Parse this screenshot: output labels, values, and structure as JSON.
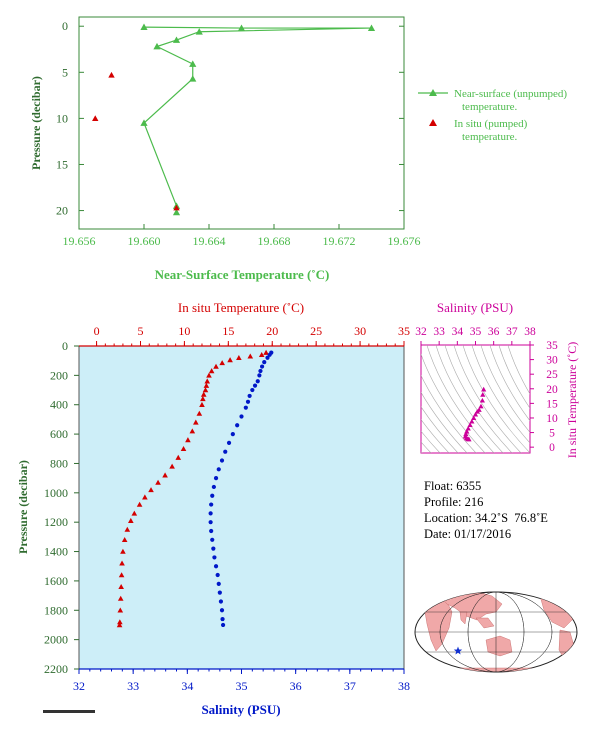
{
  "colors": {
    "near_surface": "#4cbb4c",
    "in_situ": "#d40000",
    "salinity": "#0018c8",
    "tick_label_green": "#2f6b2f",
    "ts_plot": "#cc0099",
    "panel_bg": "#cdeef8",
    "map_land": "#f0a8a8"
  },
  "chart_data": [
    {
      "type": "line",
      "xlabel": "Near-Surface Temperature (˚C)",
      "ylabel": "Pressure (decibar)",
      "xlim": [
        19.656,
        19.676
      ],
      "ylim": [
        22,
        -1
      ],
      "x_ticks": [
        "19.656",
        "19.660",
        "19.664",
        "19.668",
        "19.672",
        "19.676"
      ],
      "y_ticks": [
        "0",
        "5",
        "10",
        "15",
        "20"
      ],
      "legend_placement": "right",
      "series": [
        {
          "name": "Near-surface (unpumped)",
          "name_line2": "temperature.",
          "marker": "triangle",
          "points": [
            [
              19.66,
              0.1
            ],
            [
              19.666,
              0.2
            ],
            [
              19.674,
              0.2
            ],
            [
              19.6634,
              0.6
            ],
            [
              19.662,
              1.5
            ],
            [
              19.6608,
              2.2
            ],
            [
              19.663,
              4.1
            ],
            [
              19.663,
              5.7
            ],
            [
              19.66,
              10.5
            ],
            [
              19.662,
              19.5
            ],
            [
              19.662,
              20.2
            ]
          ]
        },
        {
          "name": "In situ (pumped)",
          "name_line2": "temperature.",
          "marker": "triangle",
          "points": [
            [
              19.658,
              5.3
            ],
            [
              19.657,
              10.0
            ],
            [
              19.662,
              19.7
            ]
          ]
        }
      ]
    },
    {
      "type": "scatter",
      "top_axis_label": "In situ Temperature (˚C)",
      "bottom_axis_label": "Salinity (PSU)",
      "ylabel": "Pressure (decibar)",
      "temp_lim": [
        -2,
        35
      ],
      "sal_lim": [
        32,
        38
      ],
      "ylim": [
        2200,
        0
      ],
      "temp_ticks": [
        "0",
        "5",
        "10",
        "15",
        "20",
        "25",
        "30",
        "35"
      ],
      "sal_ticks": [
        "32",
        "33",
        "34",
        "35",
        "36",
        "37",
        "38"
      ],
      "y_ticks": [
        "0",
        "200",
        "400",
        "600",
        "800",
        "1000",
        "1200",
        "1400",
        "1600",
        "1800",
        "2000",
        "2200"
      ],
      "series": [
        {
          "name": "In situ Temperature",
          "marker": "triangle",
          "profile": [
            [
              19.3,
              45
            ],
            [
              18.8,
              60
            ],
            [
              17.5,
              70
            ],
            [
              16.2,
              80
            ],
            [
              15.2,
              95
            ],
            [
              14.3,
              115
            ],
            [
              13.6,
              140
            ],
            [
              13.1,
              170
            ],
            [
              12.8,
              200
            ],
            [
              12.6,
              240
            ],
            [
              12.5,
              270
            ],
            [
              12.4,
              300
            ],
            [
              12.2,
              330
            ],
            [
              12.1,
              360
            ],
            [
              12.0,
              400
            ],
            [
              11.7,
              460
            ],
            [
              11.3,
              520
            ],
            [
              10.9,
              580
            ],
            [
              10.4,
              640
            ],
            [
              9.9,
              700
            ],
            [
              9.3,
              760
            ],
            [
              8.6,
              820
            ],
            [
              7.8,
              880
            ],
            [
              7.0,
              930
            ],
            [
              6.2,
              980
            ],
            [
              5.5,
              1030
            ],
            [
              4.9,
              1080
            ],
            [
              4.3,
              1140
            ],
            [
              3.9,
              1190
            ],
            [
              3.5,
              1250
            ],
            [
              3.2,
              1320
            ],
            [
              3.0,
              1400
            ],
            [
              2.9,
              1480
            ],
            [
              2.85,
              1560
            ],
            [
              2.8,
              1640
            ],
            [
              2.75,
              1720
            ],
            [
              2.7,
              1800
            ],
            [
              2.65,
              1880
            ],
            [
              2.62,
              1900
            ]
          ]
        },
        {
          "name": "Salinity",
          "marker": "circle",
          "profile": [
            [
              35.55,
              45
            ],
            [
              35.52,
              60
            ],
            [
              35.48,
              80
            ],
            [
              35.42,
              110
            ],
            [
              35.38,
              140
            ],
            [
              35.35,
              170
            ],
            [
              35.33,
              200
            ],
            [
              35.3,
              240
            ],
            [
              35.25,
              270
            ],
            [
              35.2,
              300
            ],
            [
              35.15,
              340
            ],
            [
              35.12,
              380
            ],
            [
              35.08,
              420
            ],
            [
              35.0,
              480
            ],
            [
              34.92,
              540
            ],
            [
              34.84,
              600
            ],
            [
              34.77,
              660
            ],
            [
              34.7,
              720
            ],
            [
              34.64,
              780
            ],
            [
              34.58,
              840
            ],
            [
              34.53,
              900
            ],
            [
              34.49,
              960
            ],
            [
              34.46,
              1020
            ],
            [
              34.44,
              1080
            ],
            [
              34.43,
              1140
            ],
            [
              34.43,
              1200
            ],
            [
              34.44,
              1260
            ],
            [
              34.46,
              1320
            ],
            [
              34.48,
              1380
            ],
            [
              34.5,
              1440
            ],
            [
              34.53,
              1500
            ],
            [
              34.56,
              1560
            ],
            [
              34.58,
              1620
            ],
            [
              34.6,
              1680
            ],
            [
              34.62,
              1740
            ],
            [
              34.64,
              1800
            ],
            [
              34.65,
              1860
            ],
            [
              34.66,
              1900
            ]
          ]
        }
      ]
    },
    {
      "type": "scatter",
      "top_axis_label": "Salinity (PSU)",
      "right_axis_label": "In situ Temperature (˚C)",
      "xlim": [
        32,
        38
      ],
      "ylim": [
        -2,
        35
      ],
      "x_ticks": [
        "32",
        "33",
        "34",
        "35",
        "36",
        "37",
        "38"
      ],
      "y_ticks": [
        "0",
        "5",
        "10",
        "15",
        "20",
        "25",
        "30",
        "35"
      ],
      "points": [
        [
          35.45,
          19.8
        ],
        [
          35.4,
          18.0
        ],
        [
          35.38,
          16.0
        ],
        [
          35.3,
          14.0
        ],
        [
          35.2,
          12.8
        ],
        [
          35.1,
          12.2
        ],
        [
          35.0,
          11.2
        ],
        [
          34.9,
          10.0
        ],
        [
          34.8,
          8.8
        ],
        [
          34.7,
          7.6
        ],
        [
          34.6,
          6.4
        ],
        [
          34.52,
          5.4
        ],
        [
          34.47,
          4.5
        ],
        [
          34.44,
          3.7
        ],
        [
          34.5,
          3.1
        ],
        [
          34.58,
          2.8
        ],
        [
          34.64,
          2.7
        ]
      ]
    }
  ],
  "float_info": {
    "float_label": "Float:",
    "float_value": "6355",
    "profile_label": "Profile:",
    "profile_value": "216",
    "location_label": "Location:",
    "location_value": "34.2˚S  76.8˚E",
    "date_label": "Date:",
    "date_value": "01/17/2016"
  },
  "map": {
    "float_marker_icon": "blue-star-icon"
  }
}
